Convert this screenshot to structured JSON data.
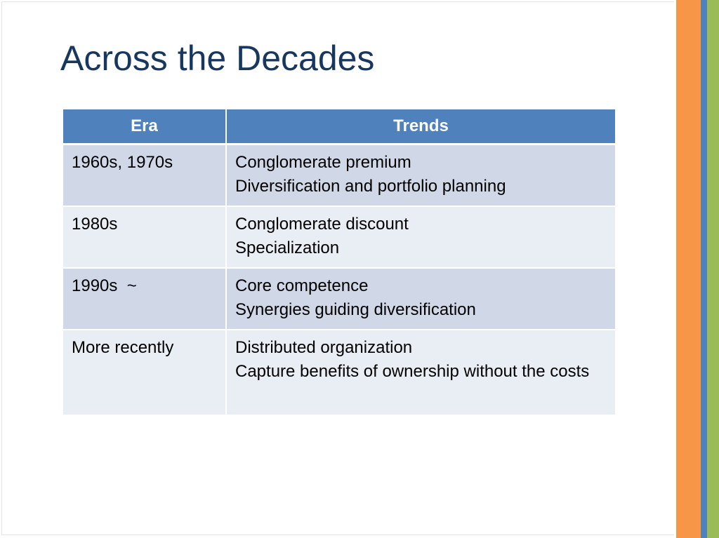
{
  "slide": {
    "title": "Across the Decades",
    "colors": {
      "title": "#17375e",
      "header_fill": "#4f81bd",
      "row_odd_fill": "#d0d8e8",
      "row_even_fill": "#e9edf4",
      "stripe_orange": "#f79646",
      "stripe_blue": "#4f81bd",
      "stripe_green": "#9bbb59"
    }
  },
  "table": {
    "headers": [
      "Era",
      "Trends"
    ],
    "rows": [
      {
        "era": "1960s, 1970s",
        "trends": [
          "Conglomerate premium",
          "Diversification and portfolio planning"
        ]
      },
      {
        "era": "1980s",
        "trends": [
          "Conglomerate discount",
          "Specialization"
        ]
      },
      {
        "era": "1990s  ~",
        "trends": [
          "Core competence",
          "Synergies guiding diversification"
        ]
      },
      {
        "era": "More recently",
        "trends": [
          "Distributed organization",
          "Capture benefits of ownership without the costs"
        ]
      }
    ]
  }
}
